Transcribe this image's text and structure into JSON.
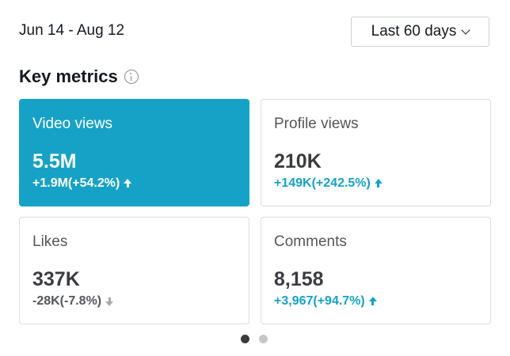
{
  "header": {
    "date_range": "Jun 14 - Aug 12",
    "period_select": {
      "selected": "Last 60 days",
      "icon": "chevron-down-icon"
    }
  },
  "section": {
    "title": "Key metrics",
    "icon": "info-icon"
  },
  "metrics": [
    {
      "label": "Video views",
      "value": "5.5M",
      "change": "+1.9M(+54.2%)",
      "trend": "up",
      "selected": true
    },
    {
      "label": "Profile views",
      "value": "210K",
      "change": "+149K(+242.5%)",
      "trend": "up",
      "selected": false
    },
    {
      "label": "Likes",
      "value": "337K",
      "change": "-28K(-7.8%)",
      "trend": "down",
      "selected": false
    },
    {
      "label": "Comments",
      "value": "8,158",
      "change": "+3,967(+94.7%)",
      "trend": "up",
      "selected": false
    }
  ],
  "pagination": {
    "pages": 2,
    "current": 1
  },
  "colors": {
    "accent": "#16a2c6",
    "text": "#161823",
    "muted": "#55565c",
    "border": "#dcdcdf"
  }
}
